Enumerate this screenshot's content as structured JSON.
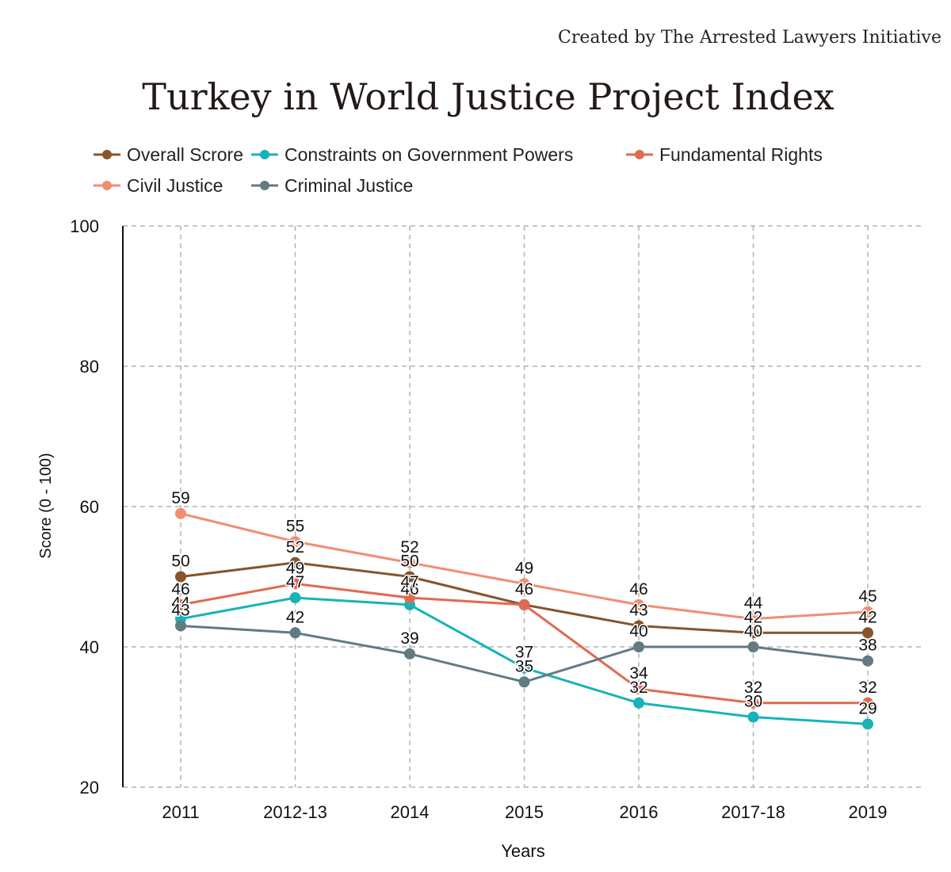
{
  "header": {
    "credit": "Created by The Arrested Lawyers Initiative"
  },
  "chart_data": {
    "type": "line",
    "title": "Turkey in World Justice Project Index",
    "xlabel": "Years",
    "ylabel": "Score (0 - 100)",
    "categories": [
      "2011",
      "2012-13",
      "2014",
      "2015",
      "2016",
      "2017-18",
      "2019"
    ],
    "ylim": [
      20,
      100
    ],
    "yticks": [
      "20",
      "40",
      "60",
      "80",
      "100"
    ],
    "grid": true,
    "legend_position": "top",
    "series": [
      {
        "name": "Overall Scrore",
        "color": "#87542c",
        "values": [
          50,
          52,
          50,
          46,
          43,
          42,
          42
        ]
      },
      {
        "name": "Constraints on Government Powers",
        "color": "#17b3b8",
        "values": [
          44,
          47,
          46,
          37,
          32,
          30,
          29
        ]
      },
      {
        "name": "Fundamental Rights",
        "color": "#e06a50",
        "values": [
          46,
          49,
          47,
          46,
          34,
          32,
          32
        ]
      },
      {
        "name": "Civil Justice",
        "color": "#f28d72",
        "values": [
          59,
          55,
          52,
          49,
          46,
          44,
          45
        ]
      },
      {
        "name": "Criminal Justice",
        "color": "#607b82",
        "values": [
          43,
          42,
          39,
          35,
          40,
          40,
          38
        ]
      }
    ]
  }
}
